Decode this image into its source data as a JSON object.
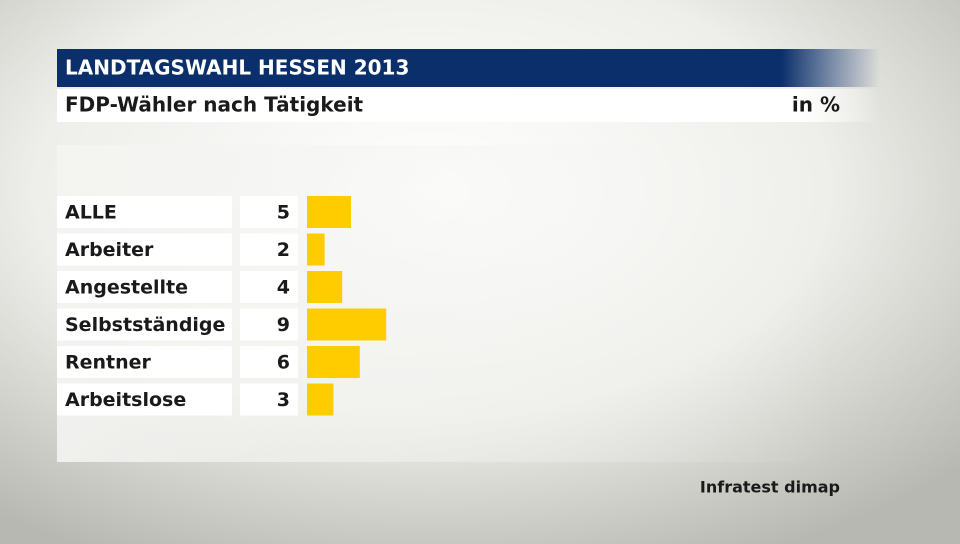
{
  "chart_data": {
    "type": "bar",
    "orientation": "horizontal",
    "title": "LANDTAGSWAHL HESSEN 2013",
    "subtitle": "FDP-Wähler nach Tätigkeit",
    "unit_label": "in %",
    "source": "Infratest dimap",
    "categories": [
      "ALLE",
      "Arbeiter",
      "Angestellte",
      "Selbstständige",
      "Rentner",
      "Arbeitslose"
    ],
    "values": [
      5,
      2,
      4,
      9,
      6,
      3
    ],
    "color": "#ffcc00"
  }
}
